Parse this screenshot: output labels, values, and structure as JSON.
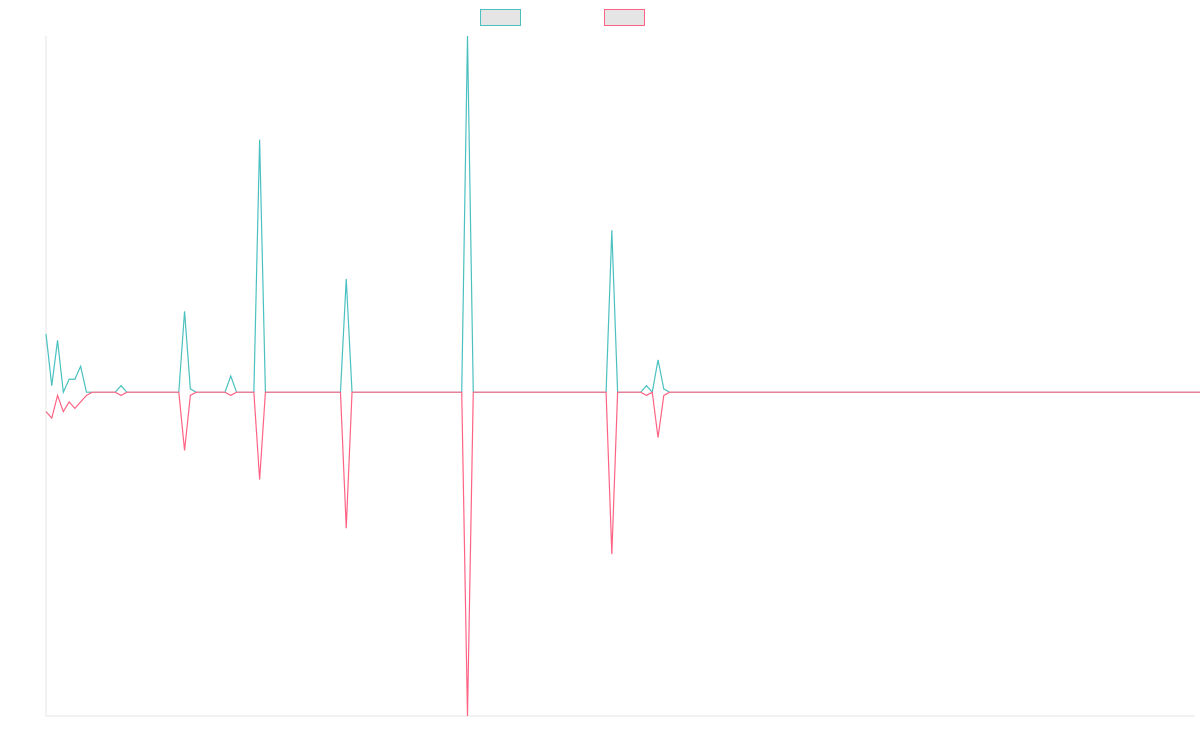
{
  "colors": {
    "series_1": "#4bc0c0",
    "series_2": "#ff6384",
    "legend_fill": "#e5e5e5",
    "axis": "#e6e6e6"
  },
  "chart_data": {
    "type": "line",
    "title": "",
    "xlabel": "",
    "ylabel": "",
    "grid": false,
    "legend": "top-center",
    "legend_labels_visible": false,
    "ylim": [
      -1,
      1.1
    ],
    "x_count": 200,
    "baseline": 0,
    "series": [
      {
        "color": "#4bc0c0",
        "values": [
          0.18,
          0.02,
          0.16,
          0,
          0.04,
          0.04,
          0.08,
          0,
          0,
          0,
          0,
          0,
          0,
          0.02,
          0,
          0,
          0,
          0,
          0,
          0,
          0,
          0,
          0,
          0,
          0.25,
          0.01,
          0,
          0,
          0,
          0,
          0,
          0,
          0.05,
          0,
          0,
          0,
          0,
          0.78,
          0,
          0,
          0,
          0,
          0,
          0,
          0,
          0,
          0,
          0,
          0,
          0,
          0,
          0,
          0.35,
          0,
          0,
          0,
          0,
          0,
          0,
          0,
          0,
          0,
          0,
          0,
          0,
          0,
          0,
          0,
          0,
          0,
          0,
          0,
          0,
          1.1,
          0,
          0,
          0,
          0,
          0,
          0,
          0,
          0,
          0,
          0,
          0,
          0,
          0,
          0,
          0,
          0,
          0,
          0,
          0,
          0,
          0,
          0,
          0,
          0,
          0.5,
          0,
          0,
          0,
          0,
          0,
          0.02,
          0,
          0.1,
          0.01,
          0,
          0,
          0,
          0,
          0,
          0,
          0,
          0,
          0,
          0,
          0,
          0,
          0,
          0,
          0,
          0,
          0,
          0,
          0,
          0,
          0,
          0,
          0,
          0,
          0,
          0,
          0,
          0,
          0,
          0,
          0,
          0,
          0,
          0,
          0,
          0,
          0,
          0,
          0,
          0,
          0,
          0,
          0,
          0,
          0,
          0,
          0,
          0,
          0,
          0,
          0,
          0,
          0,
          0,
          0,
          0,
          0,
          0,
          0,
          0,
          0,
          0,
          0,
          0,
          0,
          0,
          0,
          0,
          0,
          0,
          0,
          0,
          0,
          0,
          0,
          0,
          0,
          0,
          0,
          0,
          0,
          0,
          0,
          0,
          0,
          0,
          0,
          0,
          0,
          0,
          0,
          0,
          0,
          0,
          0,
          0,
          0,
          0,
          0
        ]
      },
      {
        "color": "#ff6384",
        "values": [
          -0.06,
          -0.08,
          -0.01,
          -0.06,
          -0.03,
          -0.05,
          -0.03,
          -0.01,
          0,
          0,
          0,
          0,
          0,
          -0.01,
          0,
          0,
          0,
          0,
          0,
          0,
          0,
          0,
          0,
          0,
          -0.18,
          -0.01,
          0,
          0,
          0,
          0,
          0,
          0,
          -0.01,
          0,
          0,
          0,
          0,
          -0.27,
          0,
          0,
          0,
          0,
          0,
          0,
          0,
          0,
          0,
          0,
          0,
          0,
          0,
          0,
          -0.42,
          0,
          0,
          0,
          0,
          0,
          0,
          0,
          0,
          0,
          0,
          0,
          0,
          0,
          0,
          0,
          0,
          0,
          0,
          0,
          0,
          -1,
          0,
          0,
          0,
          0,
          0,
          0,
          0,
          0,
          0,
          0,
          0,
          0,
          0,
          0,
          0,
          0,
          0,
          0,
          0,
          0,
          0,
          0,
          0,
          0,
          -0.5,
          0,
          0,
          0,
          0,
          0,
          -0.01,
          0,
          -0.14,
          -0.01,
          0,
          0,
          0,
          0,
          0,
          0,
          0,
          0,
          0,
          0,
          0,
          0,
          0,
          0,
          0,
          0,
          0,
          0,
          0,
          0,
          0,
          0,
          0,
          0,
          0,
          0,
          0,
          0,
          0,
          0,
          0,
          0,
          0,
          0,
          0,
          0,
          0,
          0,
          0,
          0,
          0,
          0,
          0,
          0,
          0,
          0,
          0,
          0,
          0,
          0,
          0,
          0,
          0,
          0,
          0,
          0,
          0,
          0,
          0,
          0,
          0,
          0,
          0,
          0,
          0,
          0,
          0,
          0,
          0,
          0,
          0,
          0,
          0,
          0,
          0,
          0,
          0,
          0,
          0,
          0,
          0,
          0,
          0,
          0,
          0,
          0,
          0,
          0,
          0,
          0,
          0,
          0,
          0,
          0,
          0,
          0,
          0
        ]
      }
    ]
  }
}
